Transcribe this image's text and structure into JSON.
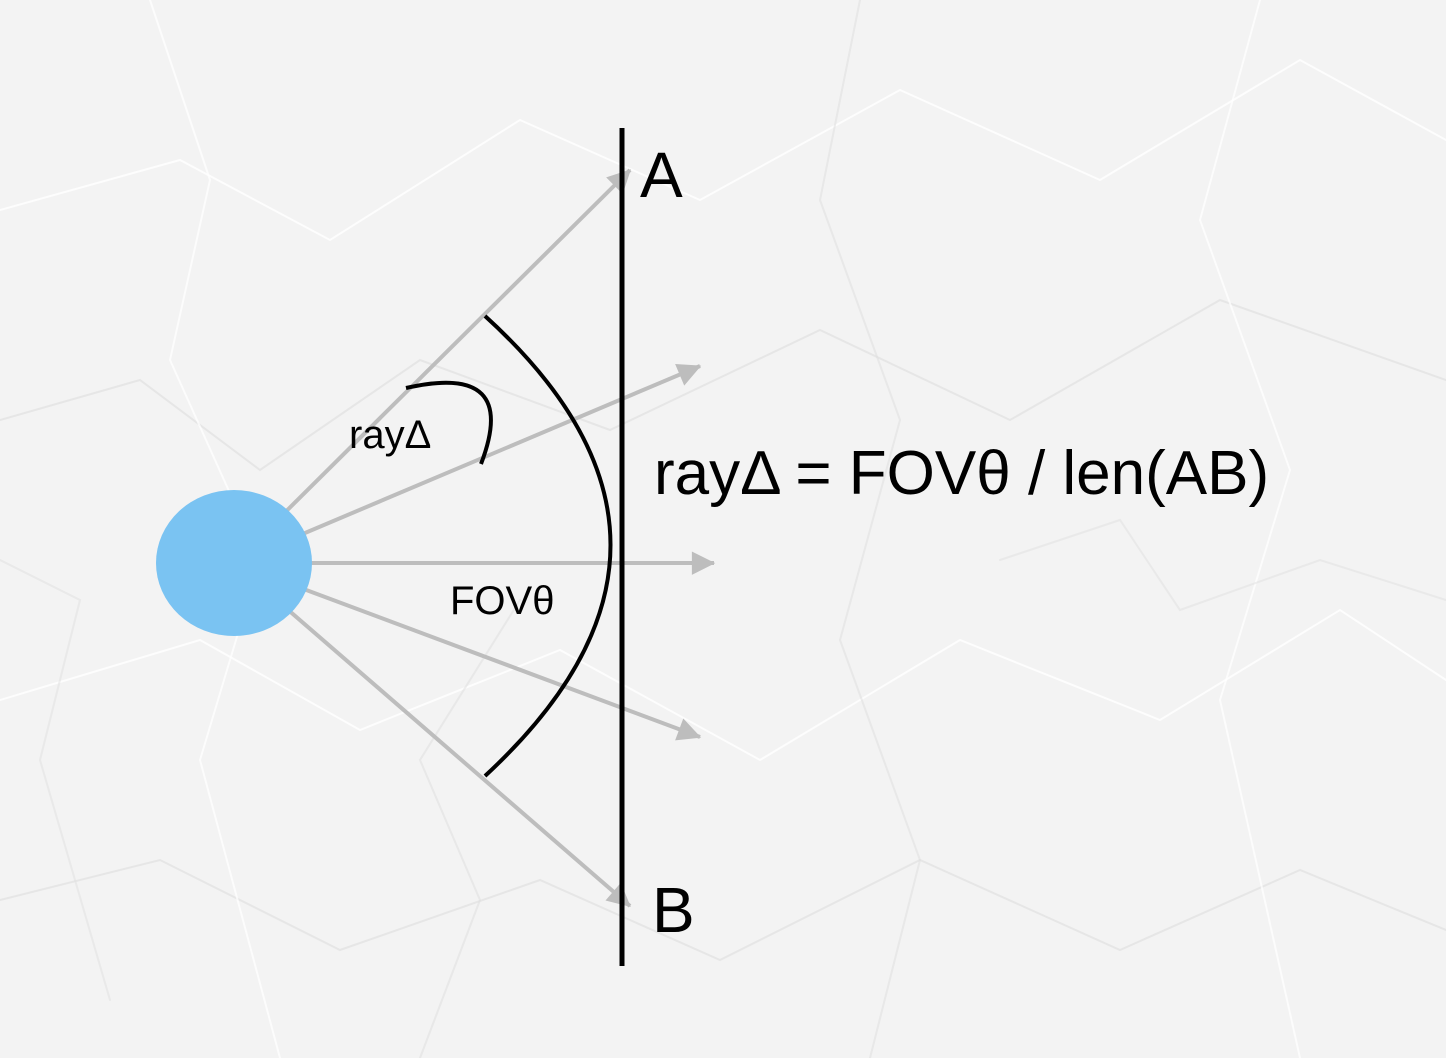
{
  "colors": {
    "background": "#f3f3f3",
    "crease_light": "#ffffff",
    "crease_dark": "#dcdcdc",
    "viewer": "#7ac3f2",
    "ray": "#bdbdbd",
    "line": "#000000"
  },
  "labels": {
    "point_a": "A",
    "point_b": "B",
    "ray_delta": "rayΔ",
    "fov": "FOVθ",
    "formula": "rayΔ = FOVθ / len(AB)"
  },
  "rays_count": 5
}
